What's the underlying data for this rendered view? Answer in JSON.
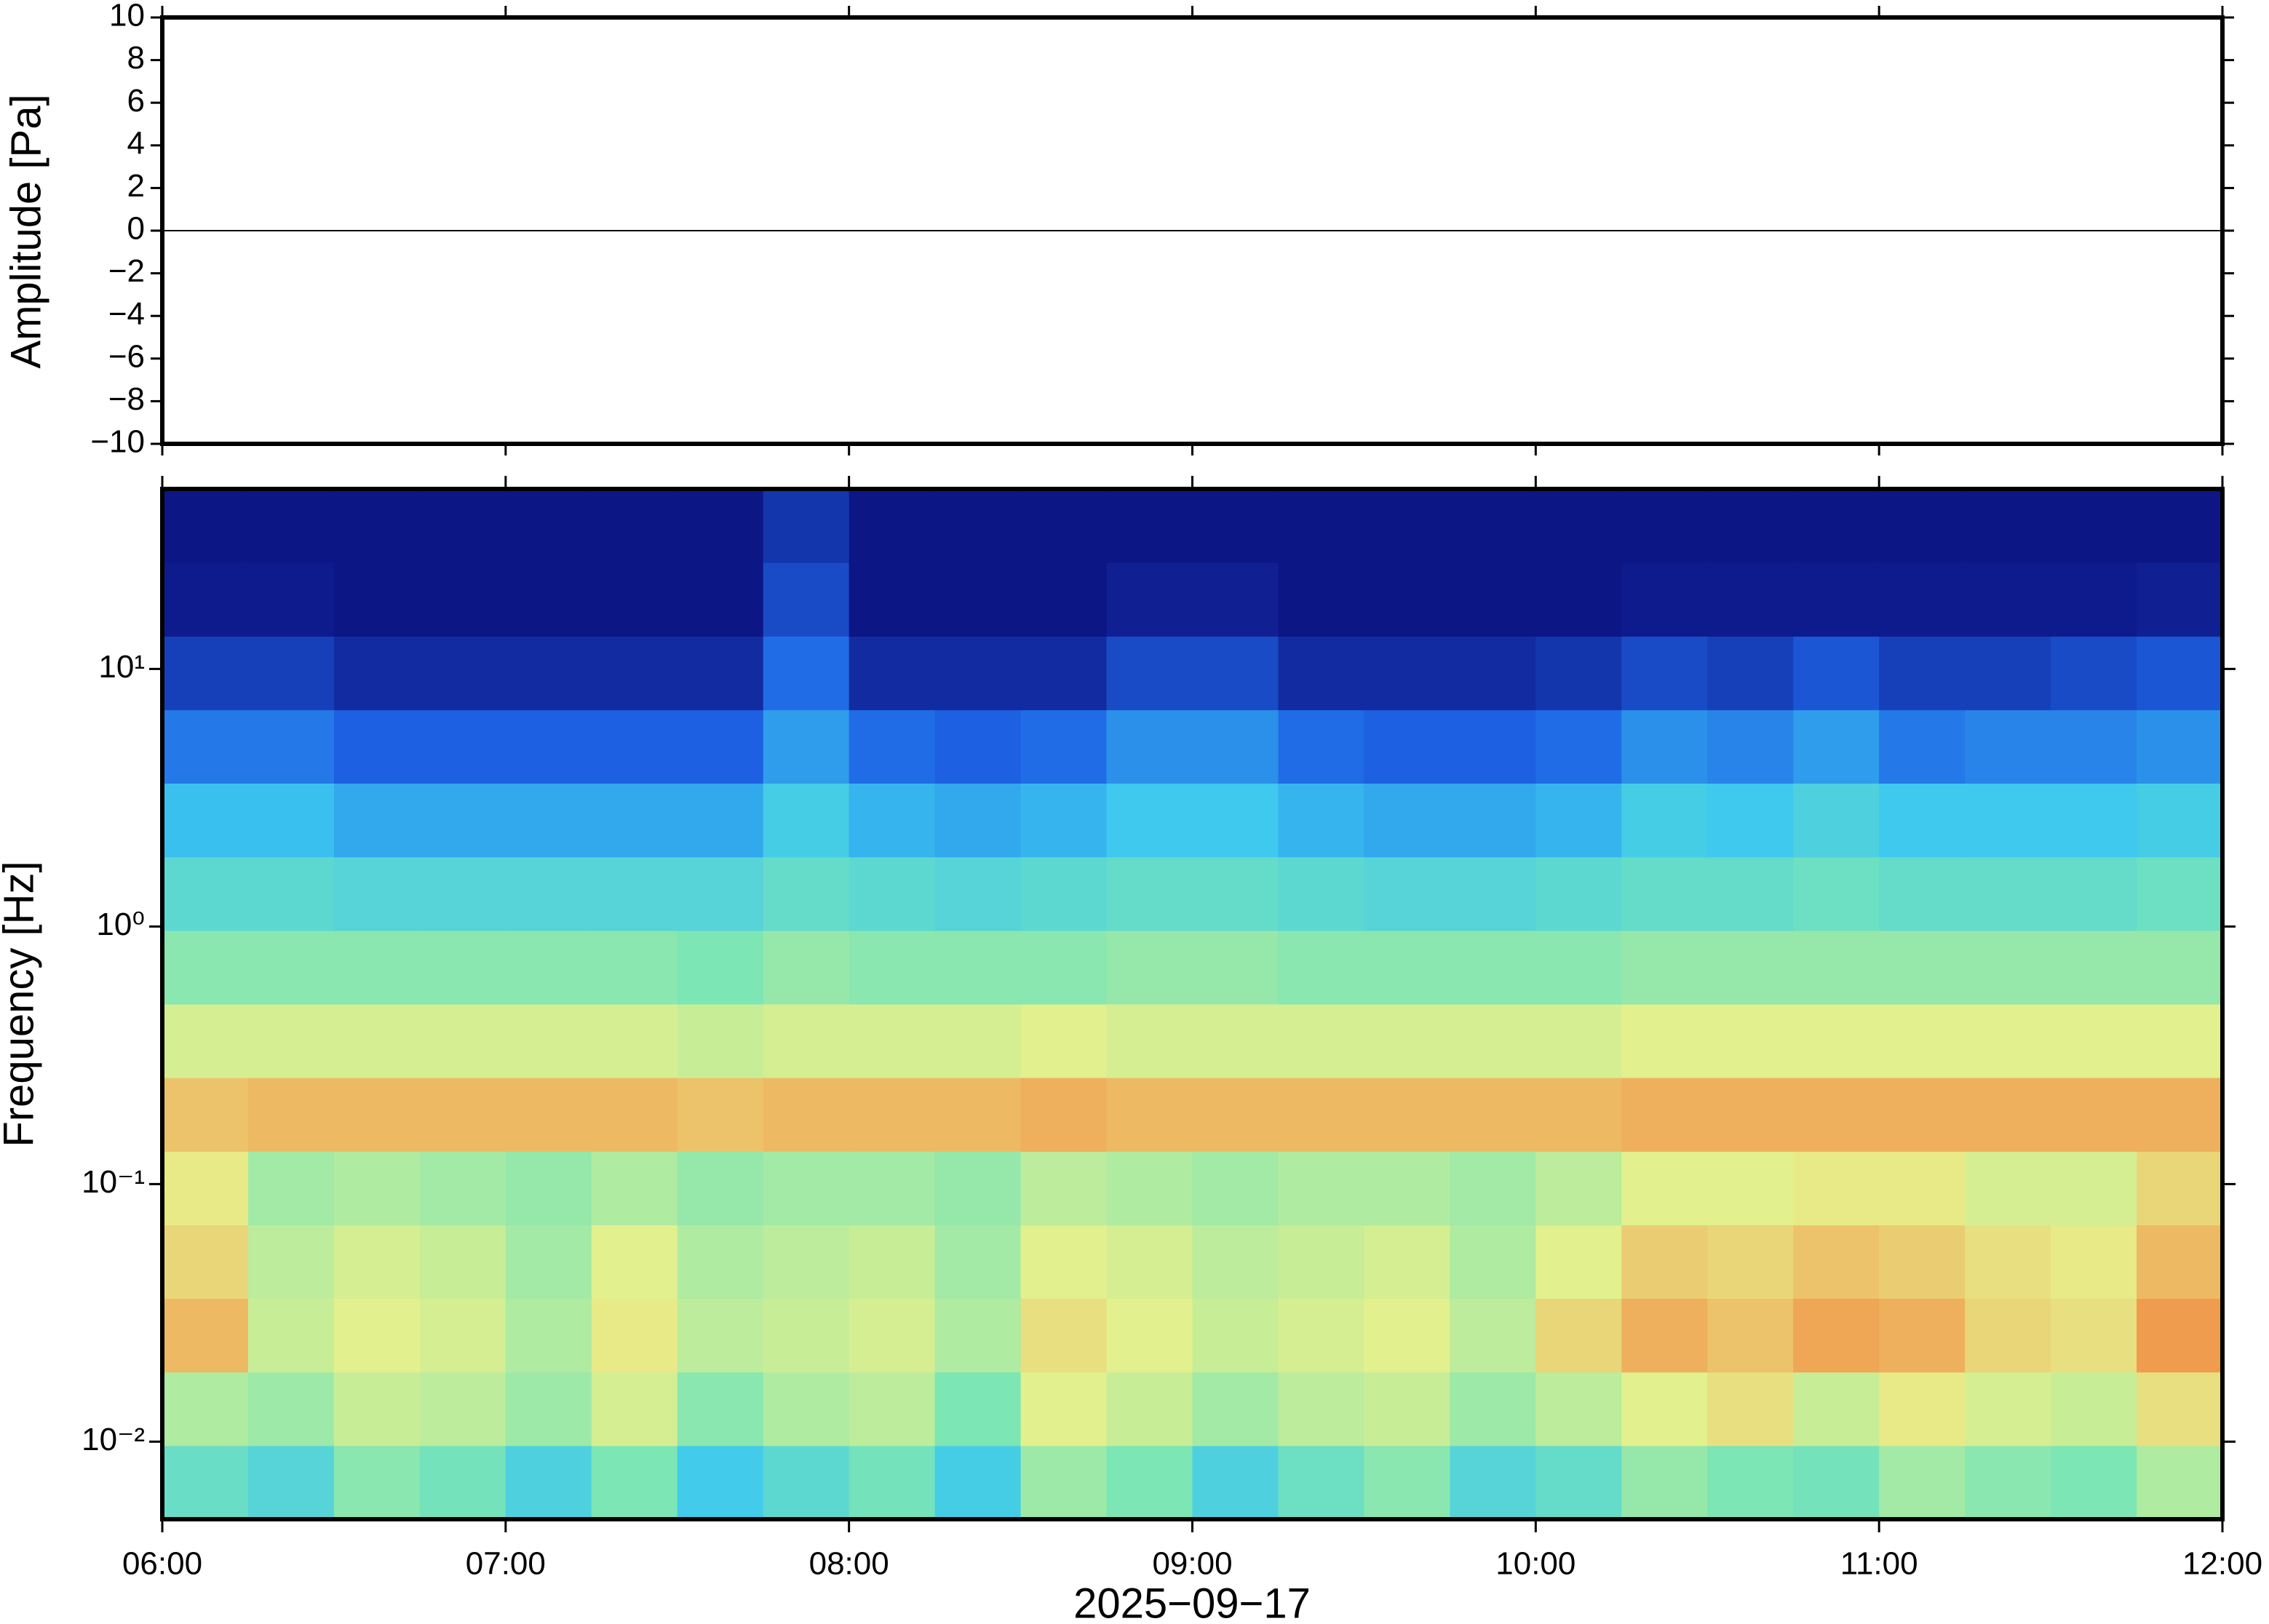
{
  "chart_data": [
    {
      "type": "line",
      "ylabel": "Amplitude [Pa]",
      "xlim": [
        "06:00",
        "12:00"
      ],
      "ylim": [
        -10,
        10
      ],
      "yticks": [
        {
          "value": -10,
          "label": "−10"
        },
        {
          "value": -8,
          "label": "−8"
        },
        {
          "value": -6,
          "label": "−6"
        },
        {
          "value": -4,
          "label": "−4"
        },
        {
          "value": -2,
          "label": "−2"
        },
        0,
        2,
        4,
        6,
        8,
        10
      ],
      "series": [
        {
          "color": "#000000",
          "x": [
            "06:00",
            "06:30",
            "07:00",
            "07:30",
            "08:00",
            "08:30",
            "09:00",
            "09:30",
            "10:00",
            "10:30",
            "11:00",
            "11:30",
            "12:00"
          ],
          "values": [
            0,
            0,
            0,
            0,
            0,
            0,
            0,
            0,
            0,
            0,
            0,
            0,
            0
          ]
        }
      ]
    },
    {
      "type": "heatmap",
      "ylabel": "Frequency [Hz]",
      "xlabel": "2025−09−17",
      "xlim": [
        "06:00",
        "12:00"
      ],
      "xticks": [
        "06:00",
        "07:00",
        "08:00",
        "09:00",
        "10:00",
        "11:00",
        "12:00"
      ],
      "ylim": [
        0.005,
        50
      ],
      "log_y": true,
      "yticks": [
        {
          "value": 0.01,
          "label": "10⁻²"
        },
        {
          "value": 0.1,
          "label": "10⁻¹"
        },
        {
          "value": 1,
          "label": "10⁰"
        },
        {
          "value": 10,
          "label": "10¹"
        }
      ],
      "x_edges": [
        "06:00",
        "06:15",
        "06:30",
        "06:45",
        "07:00",
        "07:15",
        "07:30",
        "07:45",
        "08:00",
        "08:15",
        "08:30",
        "08:45",
        "09:00",
        "09:15",
        "09:30",
        "09:45",
        "10:00",
        "10:15",
        "10:30",
        "10:45",
        "11:00",
        "11:15",
        "11:30",
        "11:45",
        "12:00"
      ],
      "y_edges": [
        0.005,
        0.00965,
        0.01863,
        0.036,
        0.0694,
        0.134,
        0.259,
        0.5,
        0.965,
        1.863,
        3.6,
        6.94,
        13.4,
        25.9,
        50
      ],
      "zlim": [
        0,
        100
      ],
      "colormap": [
        "#0b0b78",
        "#1e64e6",
        "#3cc8f0",
        "#7ce6b4",
        "#e6f08c",
        "#f0a050",
        "#e64628"
      ],
      "z": [
        [
          45,
          40,
          52,
          48,
          38,
          50,
          35,
          42,
          48,
          36,
          55,
          50,
          38,
          46,
          52,
          40,
          44,
          54,
          50,
          48,
          56,
          52,
          50,
          58
        ],
        [
          58,
          55,
          62,
          60,
          55,
          64,
          52,
          58,
          60,
          50,
          66,
          62,
          56,
          60,
          62,
          55,
          60,
          66,
          70,
          62,
          68,
          64,
          62,
          70
        ],
        [
          78,
          62,
          66,
          64,
          58,
          68,
          60,
          62,
          64,
          58,
          70,
          66,
          62,
          64,
          66,
          60,
          72,
          80,
          76,
          82,
          80,
          72,
          70,
          84
        ],
        [
          72,
          60,
          64,
          62,
          56,
          66,
          58,
          60,
          62,
          56,
          66,
          64,
          60,
          62,
          64,
          58,
          66,
          74,
          72,
          76,
          74,
          70,
          68,
          78
        ],
        [
          68,
          56,
          58,
          56,
          54,
          58,
          54,
          56,
          56,
          54,
          60,
          58,
          56,
          58,
          58,
          56,
          60,
          66,
          66,
          68,
          68,
          64,
          64,
          72
        ],
        [
          76,
          78,
          78,
          78,
          78,
          78,
          76,
          78,
          78,
          78,
          80,
          78,
          78,
          78,
          78,
          78,
          78,
          80,
          80,
          80,
          80,
          80,
          80,
          80
        ],
        [
          64,
          64,
          64,
          64,
          64,
          64,
          62,
          64,
          64,
          64,
          66,
          64,
          64,
          64,
          64,
          64,
          64,
          66,
          66,
          66,
          66,
          66,
          66,
          66
        ],
        [
          52,
          52,
          52,
          52,
          52,
          52,
          50,
          54,
          52,
          52,
          52,
          54,
          54,
          52,
          52,
          52,
          52,
          54,
          54,
          54,
          54,
          54,
          54,
          54
        ],
        [
          42,
          42,
          40,
          40,
          40,
          40,
          40,
          44,
          42,
          40,
          42,
          44,
          44,
          42,
          40,
          40,
          42,
          44,
          44,
          46,
          44,
          44,
          44,
          46
        ],
        [
          32,
          32,
          28,
          28,
          28,
          28,
          28,
          36,
          30,
          28,
          30,
          34,
          34,
          30,
          28,
          28,
          30,
          36,
          34,
          38,
          34,
          34,
          34,
          36
        ],
        [
          20,
          20,
          16,
          16,
          16,
          16,
          16,
          26,
          18,
          16,
          18,
          24,
          24,
          18,
          16,
          16,
          18,
          24,
          22,
          26,
          20,
          22,
          22,
          24
        ],
        [
          10,
          10,
          6,
          6,
          6,
          6,
          6,
          18,
          6,
          6,
          6,
          12,
          12,
          6,
          6,
          6,
          8,
          12,
          10,
          14,
          10,
          10,
          12,
          14
        ],
        [
          3,
          3,
          2,
          2,
          2,
          2,
          2,
          12,
          2,
          2,
          2,
          4,
          4,
          2,
          2,
          2,
          2,
          3,
          3,
          3,
          3,
          3,
          3,
          4
        ],
        [
          2,
          2,
          2,
          2,
          2,
          2,
          2,
          8,
          2,
          2,
          2,
          2,
          2,
          2,
          2,
          2,
          2,
          2,
          2,
          2,
          2,
          2,
          2,
          2
        ]
      ]
    }
  ]
}
